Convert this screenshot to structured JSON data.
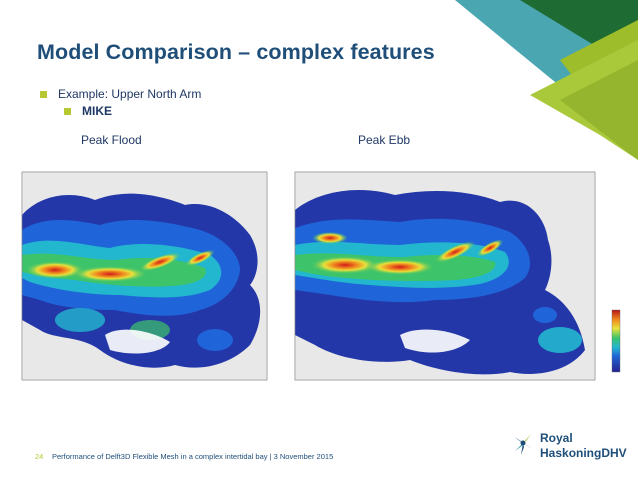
{
  "slide": {
    "title": "Model Comparison – complex features",
    "bullets": [
      {
        "text": "Example: Upper North Arm",
        "level": 1
      },
      {
        "text": "MIKE",
        "level": 2
      }
    ],
    "panes": {
      "left_label": "Peak Flood",
      "right_label": "Peak Ebb"
    },
    "footer": {
      "page_number": "24",
      "text": "Performance of Delft3D Flexible Mesh in a complex intertidal bay | 3 November 2015"
    },
    "logo": {
      "line1": "Royal",
      "line2": "HaskoningDHV"
    }
  },
  "colors": {
    "title": "#1f4e79",
    "bullet_marker": "#b7c833",
    "corner_green_dark": "#1e6b34",
    "corner_green_light": "#9ebd2a",
    "corner_teal": "#4aa6b0"
  },
  "icons": [
    "corner-triangle-graphic",
    "map-flood-figure",
    "map-ebb-figure",
    "colorbar-legend",
    "royal-haskoning-logo-icon"
  ]
}
